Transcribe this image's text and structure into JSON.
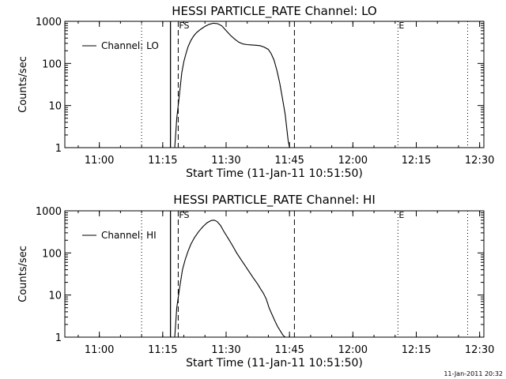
{
  "colors": {
    "background": "#ffffff",
    "foreground": "#000000"
  },
  "footer_timestamp": "11-Jan-2011 20:32",
  "chart_data": [
    {
      "type": "line",
      "title": "HESSI PARTICLE_RATE Channel: LO",
      "xlabel": "Start Time (11-Jan-11 10:51:50)",
      "ylabel": "Counts/sec",
      "yscale": "log",
      "ylim": [
        1,
        1000
      ],
      "xlim": [
        "10:51:50",
        "12:31:00"
      ],
      "x_ticks": [
        "11:00",
        "11:15",
        "11:30",
        "11:45",
        "12:00",
        "12:15",
        "12:30"
      ],
      "y_ticks": [
        "1",
        "10",
        "100",
        "1000"
      ],
      "grid": false,
      "legend": {
        "position": "top-left",
        "entries": [
          "Channel: LO"
        ]
      },
      "markers": [
        {
          "label": "",
          "time": "11:16:50",
          "style": "solid"
        },
        {
          "label": "FS",
          "time": "11:18:40",
          "style": "dashed"
        },
        {
          "label": "",
          "time": "11:46:10",
          "style": "dashed"
        },
        {
          "label": "",
          "time": "11:10:00",
          "style": "dotted"
        },
        {
          "label": "E",
          "time": "12:10:40",
          "style": "dotted"
        },
        {
          "label": "",
          "time": "12:27:10",
          "style": "dotted"
        }
      ],
      "series": [
        {
          "name": "Channel: LO",
          "x": [
            "11:17:50",
            "11:18:20",
            "11:19:00",
            "11:19:30",
            "11:20:00",
            "11:20:30",
            "11:21:00",
            "11:21:40",
            "11:22:20",
            "11:23:00",
            "11:24:00",
            "11:25:00",
            "11:26:00",
            "11:27:00",
            "11:28:00",
            "11:29:00",
            "11:30:00",
            "11:31:00",
            "11:32:00",
            "11:33:00",
            "11:34:00",
            "11:35:00",
            "11:36:00",
            "11:37:00",
            "11:38:00",
            "11:39:00",
            "11:40:00",
            "11:40:40",
            "11:41:20",
            "11:42:00",
            "11:42:40",
            "11:43:20",
            "11:44:00",
            "11:44:20",
            "11:44:40",
            "11:45:00"
          ],
          "y": [
            1,
            5,
            20,
            60,
            110,
            170,
            250,
            350,
            450,
            540,
            650,
            760,
            850,
            900,
            880,
            780,
            600,
            470,
            380,
            320,
            290,
            280,
            275,
            270,
            265,
            245,
            215,
            170,
            120,
            70,
            35,
            15,
            6,
            3,
            1.5,
            1
          ]
        }
      ]
    },
    {
      "type": "line",
      "title": "HESSI PARTICLE_RATE Channel: HI",
      "xlabel": "Start Time (11-Jan-11 10:51:50)",
      "ylabel": "Counts/sec",
      "yscale": "log",
      "ylim": [
        1,
        1000
      ],
      "xlim": [
        "10:51:50",
        "12:31:00"
      ],
      "x_ticks": [
        "11:00",
        "11:15",
        "11:30",
        "11:45",
        "12:00",
        "12:15",
        "12:30"
      ],
      "y_ticks": [
        "1",
        "10",
        "100",
        "1000"
      ],
      "grid": false,
      "legend": {
        "position": "top-left",
        "entries": [
          "Channel: HI"
        ]
      },
      "markers": [
        {
          "label": "",
          "time": "11:16:50",
          "style": "solid"
        },
        {
          "label": "FS",
          "time": "11:18:40",
          "style": "dashed"
        },
        {
          "label": "",
          "time": "11:46:10",
          "style": "dashed"
        },
        {
          "label": "",
          "time": "11:10:00",
          "style": "dotted"
        },
        {
          "label": "E",
          "time": "12:10:40",
          "style": "dotted"
        },
        {
          "label": "",
          "time": "12:27:10",
          "style": "dotted"
        }
      ],
      "series": [
        {
          "name": "Channel: HI",
          "x": [
            "11:17:50",
            "11:18:20",
            "11:19:00",
            "11:19:40",
            "11:20:20",
            "11:21:00",
            "11:21:40",
            "11:22:30",
            "11:23:30",
            "11:24:30",
            "11:25:30",
            "11:26:30",
            "11:27:10",
            "11:27:50",
            "11:28:40",
            "11:29:30",
            "11:30:30",
            "11:31:30",
            "11:32:30",
            "11:33:30",
            "11:34:30",
            "11:35:30",
            "11:36:30",
            "11:37:30",
            "11:38:10",
            "11:38:50",
            "11:39:30",
            "11:40:10",
            "11:40:50",
            "11:41:30",
            "11:42:10",
            "11:42:50",
            "11:43:30",
            "11:44:00"
          ],
          "y": [
            1,
            5,
            15,
            40,
            70,
            110,
            160,
            230,
            320,
            420,
            520,
            590,
            600,
            560,
            450,
            320,
            220,
            150,
            100,
            70,
            50,
            35,
            25,
            18,
            14,
            11,
            8,
            5,
            3.5,
            2.5,
            1.8,
            1.4,
            1.1,
            1
          ]
        }
      ]
    }
  ]
}
